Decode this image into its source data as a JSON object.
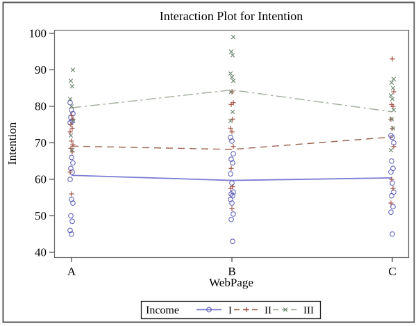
{
  "chart_data": {
    "type": "line",
    "title": "Interaction Plot for Intention",
    "xlabel": "WebPage",
    "ylabel": "Intention",
    "categories": [
      "A",
      "B",
      "C"
    ],
    "ylim": [
      40,
      100
    ],
    "yticks": [
      40,
      50,
      60,
      70,
      80,
      90,
      100
    ],
    "grid": false,
    "legend": {
      "title": "Income",
      "position": "bottom"
    },
    "series": [
      {
        "name": "I",
        "marker": "circle",
        "marker_color": "#5353b4",
        "line_color": "#7d7dd4",
        "line_style": "solid",
        "label_color": "#26266e",
        "line_values": [
          61.1,
          59.7,
          60.4
        ],
        "points": {
          "A": [
            81,
            79,
            78,
            77,
            76,
            75.5,
            66,
            64.5,
            63,
            62,
            60,
            54.5,
            53.5,
            50,
            48.5,
            46,
            45
          ],
          "B": [
            71.5,
            70.5,
            67,
            65.5,
            64.5,
            61.5,
            59,
            56.5,
            56,
            55.5,
            54.5,
            53.5,
            50.5,
            49,
            43
          ],
          "C": [
            72,
            71.5,
            70,
            65,
            63,
            62,
            59,
            56.5,
            55.5,
            52.5,
            51,
            45
          ]
        }
      },
      {
        "name": "II",
        "marker": "plus",
        "marker_color": "#9c4136",
        "line_color": "#9a6150",
        "line_style": "dash",
        "label_color": "#6e1f1f",
        "line_values": [
          69.1,
          68.2,
          71.6
        ],
        "points": {
          "A": [
            77.5,
            76.5,
            75,
            74,
            73,
            70.5,
            69.5,
            68.5,
            67.5,
            62,
            56
          ],
          "B": [
            84,
            81,
            80.5,
            76.5,
            74,
            73,
            69,
            63,
            58,
            57.5,
            52
          ],
          "C": [
            93,
            84,
            80.5,
            80,
            76.5,
            74,
            69,
            60,
            57.5,
            53.5
          ]
        }
      },
      {
        "name": "III",
        "marker": "x",
        "marker_color": "#5e7c64",
        "line_color": "#9dab98",
        "line_style": "dashdot",
        "label_color": "#1d5b30",
        "line_values": [
          79.6,
          84.5,
          78.5
        ],
        "points": {
          "A": [
            90,
            87,
            85.5,
            82,
            80,
            76,
            72,
            68
          ],
          "B": [
            99,
            95,
            94,
            89,
            88,
            87,
            84,
            78.5,
            76
          ],
          "C": [
            87.5,
            86.5,
            85,
            83,
            82,
            79,
            76.5,
            74,
            68
          ]
        }
      }
    ],
    "colors": {
      "frame": "#6e6e6e",
      "outer_border": "#585858",
      "tick": "#444444",
      "legend_border": "#1a1a1a",
      "background": "#ffffff"
    }
  }
}
